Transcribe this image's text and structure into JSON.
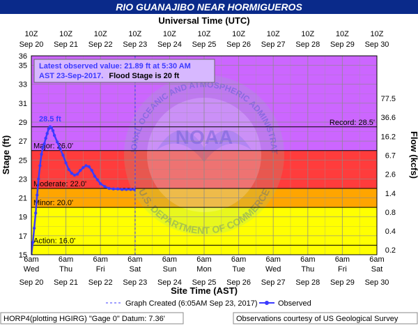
{
  "chart_data": {
    "type": "line",
    "title": "RIO GUANAJIBO NEAR HORMIGUEROS",
    "top_axis_title": "Universal Time (UTC)",
    "bottom_axis_title": "Site Time (AST)",
    "ylabel_left": "Stage (ft)",
    "ylabel_right": "Flow (kcfs)",
    "x_range": [
      "2017-09-20T06:00",
      "2017-09-30T06:00"
    ],
    "ylim": [
      15,
      36
    ],
    "top_ticks": [
      {
        "time": "Sep 20",
        "hour": "10Z"
      },
      {
        "time": "Sep 21",
        "hour": "10Z"
      },
      {
        "time": "Sep 22",
        "hour": "10Z"
      },
      {
        "time": "Sep 23",
        "hour": "10Z"
      },
      {
        "time": "Sep 24",
        "hour": "10Z"
      },
      {
        "time": "Sep 25",
        "hour": "10Z"
      },
      {
        "time": "Sep 26",
        "hour": "10Z"
      },
      {
        "time": "Sep 27",
        "hour": "10Z"
      },
      {
        "time": "Sep 28",
        "hour": "10Z"
      },
      {
        "time": "Sep 29",
        "hour": "10Z"
      },
      {
        "time": "Sep 30",
        "hour": "10Z"
      }
    ],
    "bottom_ticks": [
      {
        "hour": "6am",
        "day": "Wed",
        "date": "Sep 20"
      },
      {
        "hour": "6am",
        "day": "Thu",
        "date": "Sep 21"
      },
      {
        "hour": "6am",
        "day": "Fri",
        "date": "Sep 22"
      },
      {
        "hour": "6am",
        "day": "Sat",
        "date": "Sep 23"
      },
      {
        "hour": "6am",
        "day": "Sun",
        "date": "Sep 24"
      },
      {
        "hour": "6am",
        "day": "Mon",
        "date": "Sep 25"
      },
      {
        "hour": "6am",
        "day": "Tue",
        "date": "Sep 26"
      },
      {
        "hour": "6am",
        "day": "Wed",
        "date": "Sep 27"
      },
      {
        "hour": "6am",
        "day": "Thu",
        "date": "Sep 28"
      },
      {
        "hour": "6am",
        "day": "Fri",
        "date": "Sep 29"
      },
      {
        "hour": "6am",
        "day": "Sat",
        "date": "Sep 30"
      }
    ],
    "y_ticks_left": [
      15,
      17,
      19,
      21,
      23,
      25,
      27,
      29,
      31,
      33,
      35,
      36
    ],
    "y_ticks_right": [
      {
        "stage": 15.5,
        "label": "0.2"
      },
      {
        "stage": 17.5,
        "label": "0.4"
      },
      {
        "stage": 19.5,
        "label": "0.8"
      },
      {
        "stage": 21.5,
        "label": "1.4"
      },
      {
        "stage": 23.5,
        "label": "2.6"
      },
      {
        "stage": 25.5,
        "label": "6.7"
      },
      {
        "stage": 27.5,
        "label": "16.2"
      },
      {
        "stage": 29.5,
        "label": "36.6"
      },
      {
        "stage": 31.5,
        "label": "77.5"
      }
    ],
    "flood_bands": [
      {
        "name": "Action",
        "from": 15,
        "to": 20,
        "color": "#ffff00"
      },
      {
        "name": "Minor",
        "from": 20,
        "to": 22,
        "color": "#ffa500"
      },
      {
        "name": "Moderate",
        "from": 22,
        "to": 26,
        "color": "#ff3c3c"
      },
      {
        "name": "Major",
        "from": 26,
        "to": 36,
        "color": "#cc66ff"
      }
    ],
    "thresholds": [
      {
        "label": "Action: 16.0'",
        "value": 16.0
      },
      {
        "label": "Minor: 20.0'",
        "value": 20.0
      },
      {
        "label": "Moderate: 22.0'",
        "value": 22.0
      },
      {
        "label": "Major: 26.0'",
        "value": 26.0
      }
    ],
    "record": {
      "label": "Record: 28.5'",
      "value": 28.5
    },
    "peak": {
      "label": "28.5 ft",
      "time": "2017-09-20T19:00",
      "value": 28.5
    },
    "graph_created": "2017-09-23T06:05",
    "info_box": {
      "line1": "Latest observed value: 21.89 ft at 5:30 AM",
      "line2a": "AST 23-Sep-2017.",
      "line2b": "Flood Stage is 20 ft"
    },
    "series": [
      {
        "name": "Observed",
        "color": "#3b3bff",
        "points": [
          [
            "2017-09-20T06:00",
            15.0
          ],
          [
            "2017-09-20T07:00",
            16.3
          ],
          [
            "2017-09-20T08:00",
            17.8
          ],
          [
            "2017-09-20T09:00",
            19.4
          ],
          [
            "2017-09-20T10:00",
            21.3
          ],
          [
            "2017-09-20T11:00",
            23.0
          ],
          [
            "2017-09-20T12:00",
            24.4
          ],
          [
            "2017-09-20T13:00",
            25.6
          ],
          [
            "2017-09-20T14:00",
            26.3
          ],
          [
            "2017-09-20T15:00",
            26.7
          ],
          [
            "2017-09-20T16:00",
            27.3
          ],
          [
            "2017-09-20T17:00",
            27.8
          ],
          [
            "2017-09-20T18:00",
            28.3
          ],
          [
            "2017-09-20T19:00",
            28.5
          ],
          [
            "2017-09-20T20:00",
            28.4
          ],
          [
            "2017-09-20T21:00",
            28.1
          ],
          [
            "2017-09-20T22:00",
            27.6
          ],
          [
            "2017-09-21T00:00",
            26.9
          ],
          [
            "2017-09-21T02:00",
            26.2
          ],
          [
            "2017-09-21T04:00",
            25.5
          ],
          [
            "2017-09-21T06:00",
            24.7
          ],
          [
            "2017-09-21T08:00",
            24.0
          ],
          [
            "2017-09-21T10:00",
            23.6
          ],
          [
            "2017-09-21T12:00",
            23.4
          ],
          [
            "2017-09-21T14:00",
            23.5
          ],
          [
            "2017-09-21T16:00",
            23.9
          ],
          [
            "2017-09-21T18:00",
            24.2
          ],
          [
            "2017-09-21T20:00",
            24.4
          ],
          [
            "2017-09-21T22:00",
            24.3
          ],
          [
            "2017-09-22T00:00",
            23.9
          ],
          [
            "2017-09-22T02:00",
            23.3
          ],
          [
            "2017-09-22T04:00",
            22.9
          ],
          [
            "2017-09-22T06:00",
            22.5
          ],
          [
            "2017-09-22T09:00",
            22.2
          ],
          [
            "2017-09-22T12:00",
            22.0
          ],
          [
            "2017-09-22T15:00",
            21.95
          ],
          [
            "2017-09-22T18:00",
            21.95
          ],
          [
            "2017-09-22T21:00",
            21.9
          ],
          [
            "2017-09-23T00:00",
            21.9
          ],
          [
            "2017-09-23T03:00",
            21.9
          ],
          [
            "2017-09-23T05:30",
            21.89
          ]
        ]
      }
    ]
  },
  "legend": {
    "created_label": "Graph Created (6:05AM Sep 23, 2017)",
    "observed_label": "Observed"
  },
  "footer": {
    "left": "HORP4(plotting HGIRG) \"Gage 0\" Datum: 7.36'",
    "right": "Observations courtesy of US Geological Survey"
  },
  "watermark": {
    "upper_text": "NATIONAL OCEANIC AND ATMOSPHERIC ADMINISTRATION",
    "lower_text": "U.S. DEPARTMENT OF COMMERCE",
    "center_text": "NOAA"
  },
  "colors": {
    "title_bar": "#0a2a8a",
    "observed": "#3b3bff",
    "grid": "#9a9a9a"
  }
}
